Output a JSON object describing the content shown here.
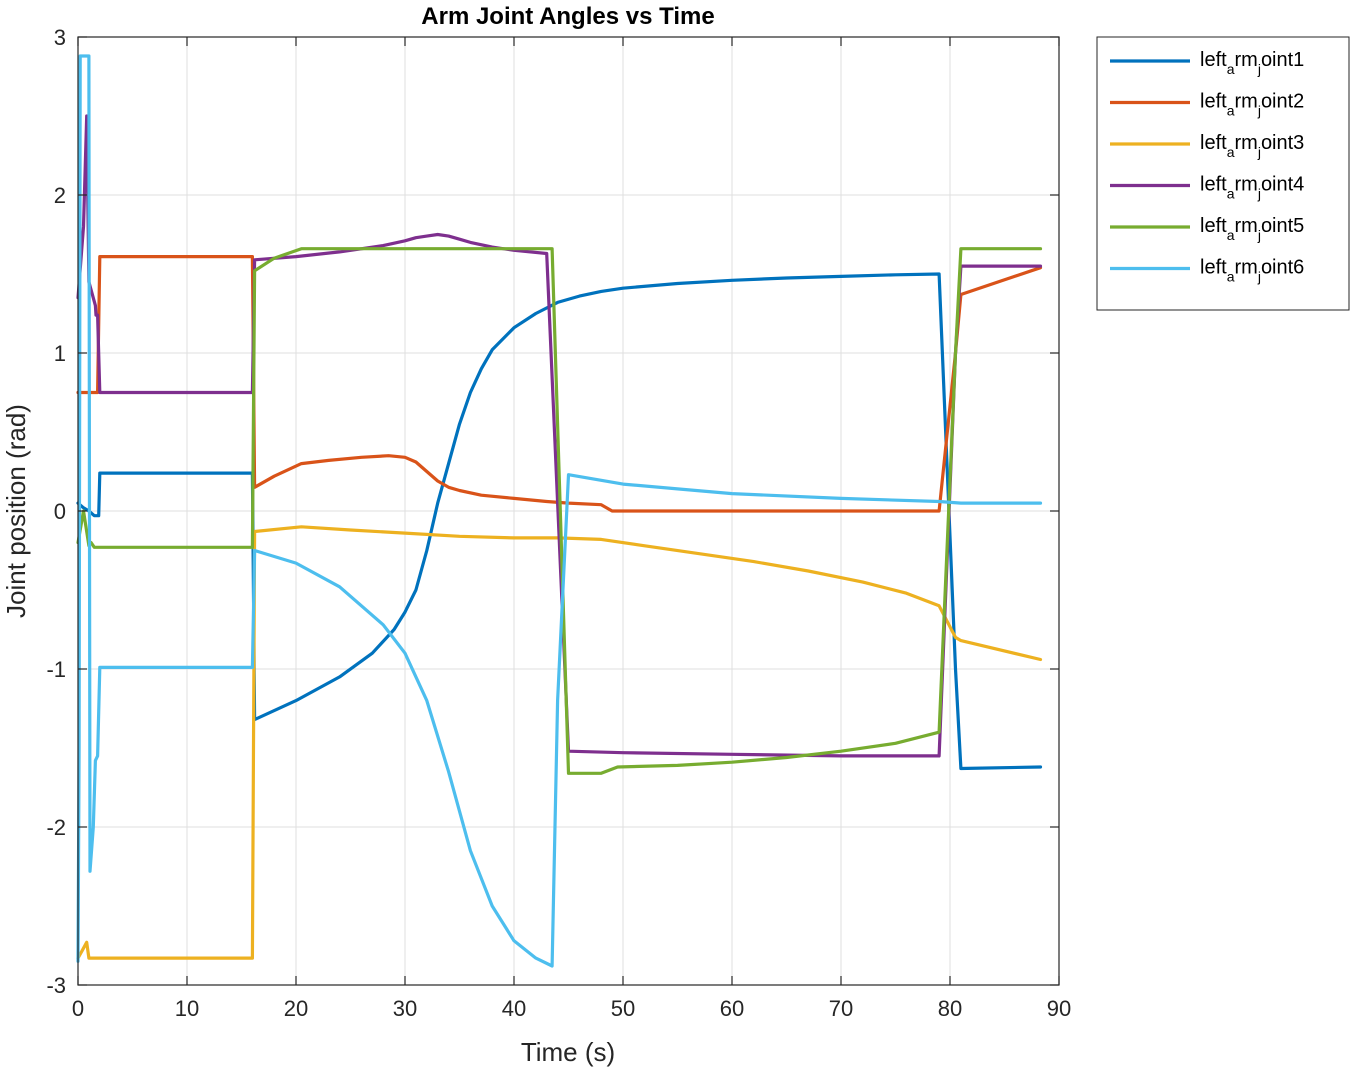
{
  "chart_data": {
    "type": "line",
    "title": "Arm Joint Angles vs Time",
    "xlabel": "Time (s)",
    "ylabel": "Joint position (rad)",
    "xlim": [
      0,
      90
    ],
    "ylim": [
      -3,
      3
    ],
    "xticks": [
      0,
      10,
      20,
      30,
      40,
      50,
      60,
      70,
      80,
      90
    ],
    "yticks": [
      -3,
      -2,
      -1,
      0,
      1,
      2,
      3
    ],
    "xtick_labels": [
      "0",
      "10",
      "20",
      "30",
      "40",
      "50",
      "60",
      "70",
      "80",
      "90"
    ],
    "ytick_labels": [
      "-3",
      "-2",
      "-1",
      "0",
      "1",
      "2",
      "3"
    ],
    "grid": true,
    "legend_position": "outside-top-right",
    "series": [
      {
        "name_parts": [
          "left",
          "a",
          "rm",
          "j",
          "oint1"
        ],
        "color": "#0072BD",
        "x": [
          0,
          0.5,
          1.0,
          1.5,
          1.9,
          2.0,
          16.0,
          16.2,
          20,
          24,
          27,
          29,
          30,
          31,
          32,
          33,
          34,
          35,
          36,
          37,
          38,
          40,
          42,
          44,
          46,
          48,
          50,
          55,
          60,
          65,
          70,
          75,
          79,
          80.5,
          81,
          88.3
        ],
        "y": [
          0.05,
          0.02,
          0.0,
          -0.03,
          -0.03,
          0.24,
          0.24,
          -1.32,
          -1.2,
          -1.05,
          -0.9,
          -0.75,
          -0.64,
          -0.5,
          -0.25,
          0.05,
          0.3,
          0.55,
          0.75,
          0.9,
          1.02,
          1.16,
          1.25,
          1.32,
          1.36,
          1.39,
          1.41,
          1.44,
          1.46,
          1.475,
          1.485,
          1.495,
          1.5,
          -1.0,
          -1.63,
          -1.62
        ]
      },
      {
        "name_parts": [
          "left",
          "a",
          "rm",
          "j",
          "oint2"
        ],
        "color": "#D95319",
        "x": [
          0,
          1.8,
          2.0,
          16.0,
          16.2,
          18,
          20.5,
          23,
          26,
          28.5,
          30,
          31,
          32,
          33,
          34,
          35,
          37,
          40,
          43,
          45,
          48,
          49,
          79,
          80.5,
          81,
          88.3
        ],
        "y": [
          0.75,
          0.75,
          1.61,
          1.61,
          0.15,
          0.22,
          0.3,
          0.32,
          0.34,
          0.35,
          0.34,
          0.31,
          0.25,
          0.19,
          0.15,
          0.13,
          0.1,
          0.08,
          0.06,
          0.05,
          0.04,
          0.0,
          0.0,
          1.0,
          1.37,
          1.54
        ]
      },
      {
        "name_parts": [
          "left",
          "a",
          "rm",
          "j",
          "oint3"
        ],
        "color": "#EDB120",
        "x": [
          0,
          0.4,
          0.8,
          1.0,
          1.2,
          16.0,
          16.2,
          20.5,
          25,
          30,
          35,
          40,
          44,
          48,
          52,
          57,
          62,
          67,
          72,
          76,
          79,
          80.5,
          81,
          88.3
        ],
        "y": [
          -2.83,
          -2.78,
          -2.73,
          -2.83,
          -2.83,
          -2.83,
          -0.13,
          -0.1,
          -0.12,
          -0.14,
          -0.16,
          -0.17,
          -0.17,
          -0.18,
          -0.22,
          -0.27,
          -0.32,
          -0.38,
          -0.45,
          -0.52,
          -0.6,
          -0.8,
          -0.82,
          -0.94
        ]
      },
      {
        "name_parts": [
          "left",
          "a",
          "rm",
          "j",
          "oint4"
        ],
        "color": "#7E2F8E",
        "x": [
          0,
          0.5,
          0.8,
          1.0,
          1.6,
          1.65,
          1.8,
          2.0,
          16.0,
          16.2,
          20,
          24,
          28,
          30,
          31,
          32,
          33,
          34,
          35,
          36,
          38,
          40,
          43,
          45,
          50,
          60,
          70,
          79,
          80.5,
          81,
          88.3
        ],
        "y": [
          1.35,
          1.8,
          2.5,
          1.45,
          1.3,
          1.24,
          1.24,
          0.75,
          0.75,
          1.59,
          1.61,
          1.64,
          1.68,
          1.71,
          1.73,
          1.74,
          1.75,
          1.74,
          1.72,
          1.7,
          1.67,
          1.65,
          1.63,
          -1.52,
          -1.53,
          -1.54,
          -1.55,
          -1.55,
          1.0,
          1.55,
          1.55
        ]
      },
      {
        "name_parts": [
          "left",
          "a",
          "rm",
          "j",
          "oint5"
        ],
        "color": "#77AC30",
        "x": [
          0,
          0.5,
          1.0,
          1.2,
          1.5,
          16.0,
          16.2,
          18,
          20.5,
          30,
          40,
          43.5,
          45,
          48,
          49.5,
          55,
          60,
          65,
          70,
          75,
          79,
          80.5,
          81,
          88.3
        ],
        "y": [
          -0.2,
          0.0,
          -0.22,
          -0.2,
          -0.23,
          -0.23,
          1.52,
          1.6,
          1.66,
          1.66,
          1.66,
          1.66,
          -1.66,
          -1.66,
          -1.62,
          -1.61,
          -1.59,
          -1.56,
          -1.52,
          -1.47,
          -1.4,
          1.0,
          1.66,
          1.66
        ]
      },
      {
        "name_parts": [
          "left",
          "a",
          "rm",
          "j",
          "oint6"
        ],
        "color": "#4DBEEE",
        "x": [
          0,
          0.1,
          0.2,
          1.0,
          1.05,
          1.1,
          1.4,
          1.6,
          1.8,
          1.85,
          2.0,
          16.0,
          16.2,
          20,
          24,
          28,
          30,
          32,
          34,
          36,
          38,
          40,
          42,
          43.5,
          44,
          45,
          50,
          55,
          60,
          70,
          79,
          81,
          88.3
        ],
        "y": [
          -2.85,
          -1.5,
          2.88,
          2.88,
          0.3,
          -2.28,
          -2.0,
          -1.58,
          -1.55,
          -1.4,
          -0.99,
          -0.99,
          -0.25,
          -0.33,
          -0.48,
          -0.72,
          -0.9,
          -1.2,
          -1.65,
          -2.15,
          -2.5,
          -2.72,
          -2.83,
          -2.88,
          -1.2,
          0.23,
          0.17,
          0.14,
          0.11,
          0.08,
          0.06,
          0.05,
          0.05
        ]
      }
    ]
  }
}
